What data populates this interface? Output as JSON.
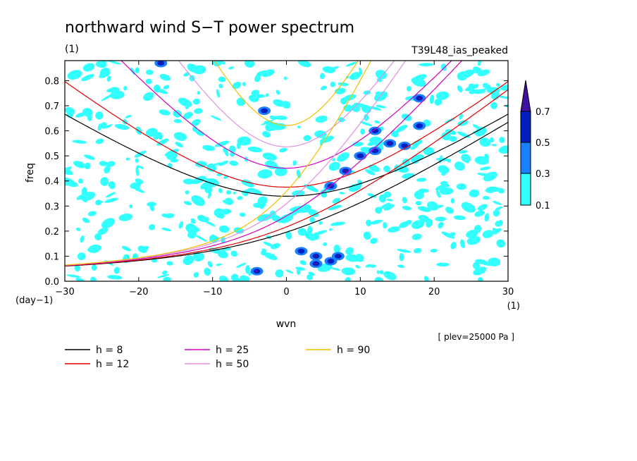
{
  "chart_data": {
    "type": "contour",
    "title": "northward wind S−T power spectrum",
    "subtitle_left": "(1)",
    "subtitle_right": "T39L48_ias_peaked",
    "xlabel": "wvn",
    "ylabel": "freq",
    "xunit": "(1)",
    "yunit": "(day−1)",
    "xlim": [
      -30,
      30
    ],
    "ylim": [
      0,
      0.88
    ],
    "xticks": [
      "−30",
      "−20",
      "−10",
      "0",
      "10",
      "20",
      "30"
    ],
    "yticks": [
      "0.0",
      "0.1",
      "0.2",
      "0.3",
      "0.4",
      "0.5",
      "0.6",
      "0.7",
      "0.8"
    ],
    "colorbar": {
      "levels": [
        "0.1",
        "0.3",
        "0.5",
        "0.7"
      ],
      "colors": [
        "#33ffff",
        "#1a80ff",
        "#0020c0",
        "#4010a0"
      ]
    },
    "note": "[ plev=25000 Pa ]",
    "dispersion_curves": [
      {
        "label": "h =  8",
        "h": 8,
        "color": "#000000"
      },
      {
        "label": "h = 12",
        "h": 12,
        "color": "#e00000"
      },
      {
        "label": "h = 25",
        "h": 25,
        "color": "#d000c0"
      },
      {
        "label": "h = 50",
        "h": 50,
        "color": "#e090e0"
      },
      {
        "label": "h = 90",
        "h": 90,
        "color": "#f0c000"
      }
    ]
  }
}
